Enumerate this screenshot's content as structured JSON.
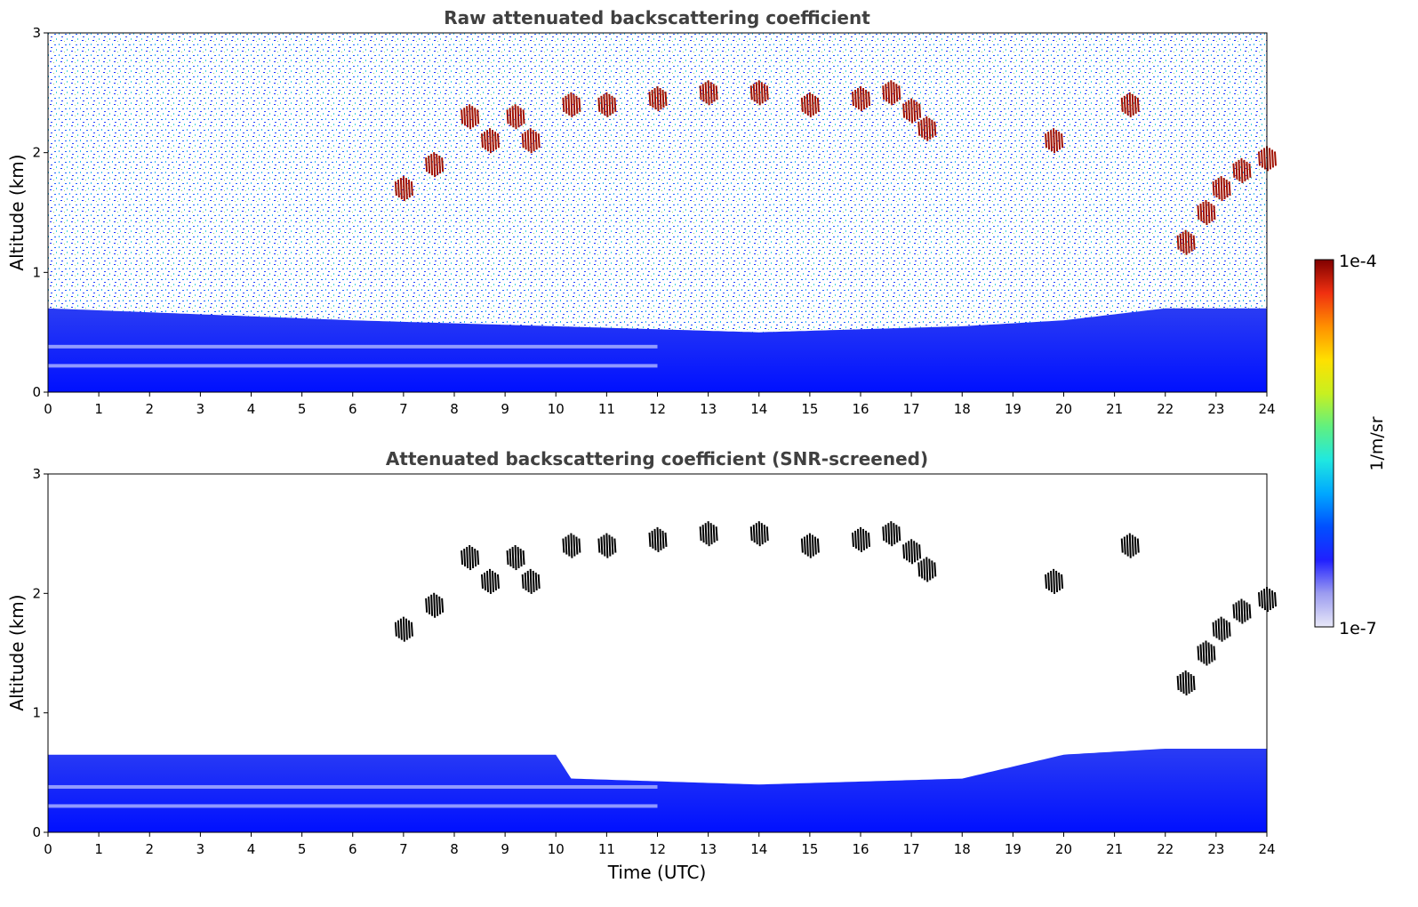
{
  "chart_data": [
    {
      "type": "heatmap",
      "title": "Raw attenuated backscattering coefficient",
      "ylabel": "Altitude (km)",
      "xlabel": "",
      "xlim": [
        0,
        24
      ],
      "ylim": [
        0,
        3
      ],
      "xticks": [
        "0",
        "1",
        "2",
        "3",
        "4",
        "5",
        "6",
        "7",
        "8",
        "9",
        "10",
        "11",
        "12",
        "13",
        "14",
        "15",
        "16",
        "17",
        "18",
        "19",
        "20",
        "21",
        "22",
        "23",
        "24"
      ],
      "yticks": [
        "0",
        "1",
        "2",
        "3"
      ],
      "features": {
        "boundary_layer_top_km": [
          [
            0,
            0.7
          ],
          [
            6,
            0.6
          ],
          [
            10,
            0.55
          ],
          [
            14,
            0.5
          ],
          [
            18,
            0.55
          ],
          [
            20,
            0.6
          ],
          [
            22,
            0.7
          ],
          [
            24,
            0.7
          ]
        ],
        "cloud_layer_km": [
          [
            7.0,
            1.7
          ],
          [
            7.6,
            1.9
          ],
          [
            8.3,
            2.3
          ],
          [
            8.7,
            2.1
          ],
          [
            9.2,
            2.3
          ],
          [
            9.5,
            2.1
          ],
          [
            10.3,
            2.4
          ],
          [
            11,
            2.4
          ],
          [
            12,
            2.45
          ],
          [
            13,
            2.5
          ],
          [
            14,
            2.5
          ],
          [
            15,
            2.4
          ],
          [
            16,
            2.45
          ],
          [
            16.6,
            2.5
          ],
          [
            17.0,
            2.35
          ],
          [
            17.3,
            2.2
          ],
          [
            19.8,
            2.1
          ],
          [
            21.3,
            2.4
          ],
          [
            22.4,
            1.25
          ],
          [
            22.8,
            1.5
          ],
          [
            23.1,
            1.7
          ],
          [
            23.5,
            1.85
          ],
          [
            24,
            1.95
          ]
        ],
        "noise_region": "0.7-3 km"
      }
    },
    {
      "type": "heatmap",
      "title": "Attenuated backscattering coefficient (SNR-screened)",
      "ylabel": "Altitude (km)",
      "xlabel": "Time (UTC)",
      "xlim": [
        0,
        24
      ],
      "ylim": [
        0,
        3
      ],
      "xticks": [
        "0",
        "1",
        "2",
        "3",
        "4",
        "5",
        "6",
        "7",
        "8",
        "9",
        "10",
        "11",
        "12",
        "13",
        "14",
        "15",
        "16",
        "17",
        "18",
        "19",
        "20",
        "21",
        "22",
        "23",
        "24"
      ],
      "yticks": [
        "0",
        "1",
        "2",
        "3"
      ],
      "features": {
        "boundary_layer_top_km": [
          [
            0,
            0.65
          ],
          [
            10,
            0.65
          ],
          [
            10.3,
            0.45
          ],
          [
            14,
            0.4
          ],
          [
            18,
            0.45
          ],
          [
            20,
            0.65
          ],
          [
            22,
            0.7
          ],
          [
            24,
            0.7
          ]
        ],
        "cloud_layer_km": [
          [
            7.0,
            1.7
          ],
          [
            7.6,
            1.9
          ],
          [
            8.3,
            2.3
          ],
          [
            8.7,
            2.1
          ],
          [
            9.2,
            2.3
          ],
          [
            9.5,
            2.1
          ],
          [
            10.3,
            2.4
          ],
          [
            11,
            2.4
          ],
          [
            12,
            2.45
          ],
          [
            13,
            2.5
          ],
          [
            14,
            2.5
          ],
          [
            15,
            2.4
          ],
          [
            16,
            2.45
          ],
          [
            16.6,
            2.5
          ],
          [
            17.0,
            2.35
          ],
          [
            17.3,
            2.2
          ],
          [
            19.8,
            2.1
          ],
          [
            21.3,
            2.4
          ],
          [
            22.4,
            1.25
          ],
          [
            22.8,
            1.5
          ],
          [
            23.1,
            1.7
          ],
          [
            23.5,
            1.85
          ],
          [
            24,
            1.95
          ]
        ]
      }
    }
  ],
  "colorbar": {
    "label": "1/m/sr",
    "min_label": "1e-7",
    "max_label": "1e-4",
    "scale": "log",
    "colors": [
      "#e8e8f8",
      "#9c9cf0",
      "#2020ff",
      "#0050ff",
      "#00a8ff",
      "#20e8e0",
      "#60f080",
      "#c8f020",
      "#ffe000",
      "#ff9000",
      "#f03010",
      "#800000"
    ]
  }
}
